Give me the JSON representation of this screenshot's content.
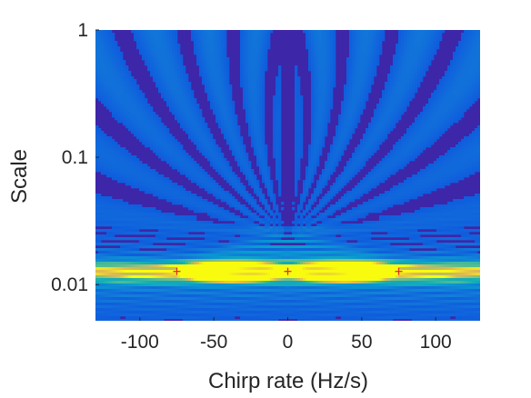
{
  "chart_data": {
    "type": "heatmap",
    "xlabel": "Chirp rate (Hz/s)",
    "ylabel": "Scale",
    "xlim": [
      -130,
      130
    ],
    "ylim": [
      0.0052,
      1
    ],
    "yscale": "log",
    "xticks": [
      -100,
      -50,
      0,
      50,
      100
    ],
    "xtick_labels": [
      "-100",
      "-50",
      "0",
      "50",
      "100"
    ],
    "yticks": [
      1,
      0.1,
      0.01
    ],
    "ytick_labels": [
      "1",
      "0.1",
      "0.01"
    ],
    "colormap": "parula",
    "colors": {
      "background": "#3d26a8",
      "mid": "#1a9ddb",
      "high": "#e2c93a",
      "peak": "#f9fb0e",
      "marker": "#e0302b"
    },
    "ridge": {
      "scale": 0.0127,
      "x_range": [
        -130,
        130
      ]
    },
    "focus": {
      "x": 0,
      "scale": 0.024
    },
    "markers": [
      {
        "x": -75,
        "scale": 0.0127
      },
      {
        "x": 0,
        "scale": 0.0127
      },
      {
        "x": 75,
        "scale": 0.0127
      }
    ]
  }
}
